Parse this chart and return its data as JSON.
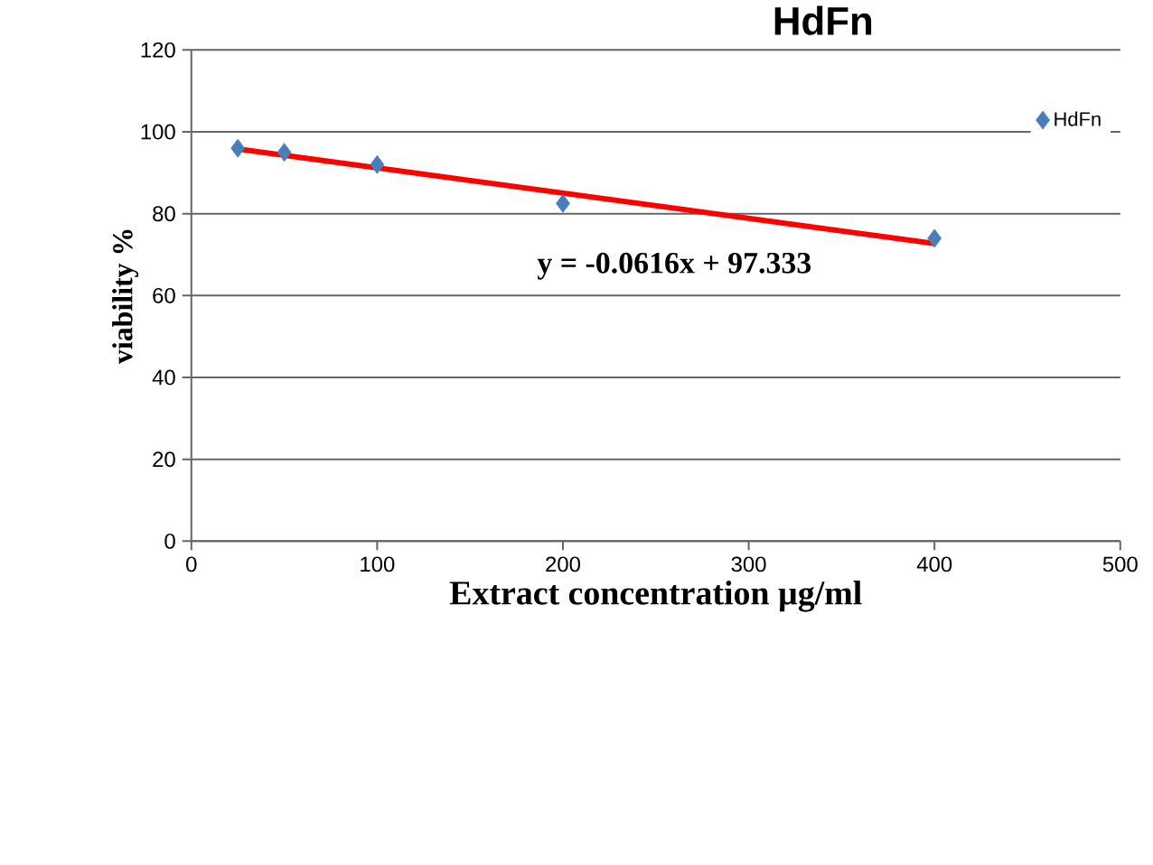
{
  "chart_data": {
    "type": "scatter",
    "title": "HdFn",
    "xlabel": "Extract concentration µg/ml",
    "ylabel": "viability %",
    "xlim": [
      0,
      500
    ],
    "xticks": [
      0,
      100,
      200,
      300,
      400,
      500
    ],
    "ylim": [
      0,
      120
    ],
    "yticks": [
      0,
      20,
      40,
      60,
      80,
      100,
      120
    ],
    "grid": "y",
    "legend": "top right",
    "marker": "diamond",
    "series": [
      {
        "name": "HdFn",
        "color": "#4a7ebb",
        "x": [
          25,
          50,
          100,
          200,
          400
        ],
        "values": [
          96,
          95,
          92,
          82.5,
          74
        ]
      },
      {
        "type": "line",
        "color": "#ff0000",
        "x": [
          25,
          400
        ],
        "values": [
          95.8,
          72.7
        ],
        "marker": "none"
      }
    ],
    "annotations": [
      "y = -0.0616x + 97.333"
    ]
  }
}
